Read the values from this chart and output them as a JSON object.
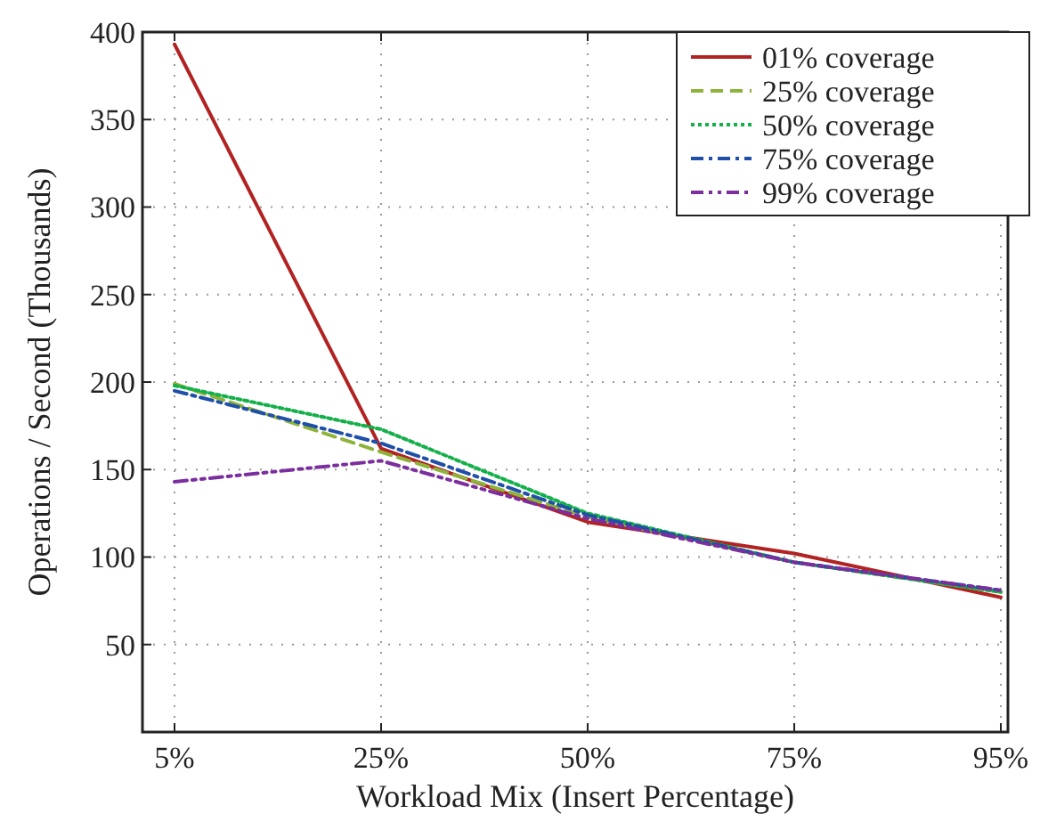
{
  "chart_data": {
    "type": "line",
    "xlabel": "Workload Mix (Insert Percentage)",
    "ylabel": "Operations / Second (Thousands)",
    "categories": [
      "5%",
      "25%",
      "50%",
      "75%",
      "95%"
    ],
    "series": [
      {
        "name": "01% coverage",
        "color": "#b22222",
        "line_style": "solid",
        "values": [
          393,
          162,
          120,
          102,
          77
        ]
      },
      {
        "name": "25% coverage",
        "color": "#8db33a",
        "line_style": "dashed",
        "values": [
          199,
          160,
          123,
          97,
          80
        ]
      },
      {
        "name": "50% coverage",
        "color": "#14b04a",
        "line_style": "dotted",
        "values": [
          198,
          173,
          125,
          97,
          80
        ]
      },
      {
        "name": "75% coverage",
        "color": "#1f4fa8",
        "line_style": "dashdot",
        "values": [
          195,
          165,
          124,
          97,
          81
        ]
      },
      {
        "name": "99% coverage",
        "color": "#7b2e9e",
        "line_style": "dashdotdot",
        "values": [
          143,
          155,
          122,
          97,
          81
        ]
      }
    ],
    "ylim": [
      0,
      400
    ],
    "yticks": [
      {
        "value": 0,
        "label": null
      },
      50,
      100,
      150,
      200,
      250,
      300,
      350,
      400
    ],
    "grid": true,
    "legend": "top right"
  }
}
